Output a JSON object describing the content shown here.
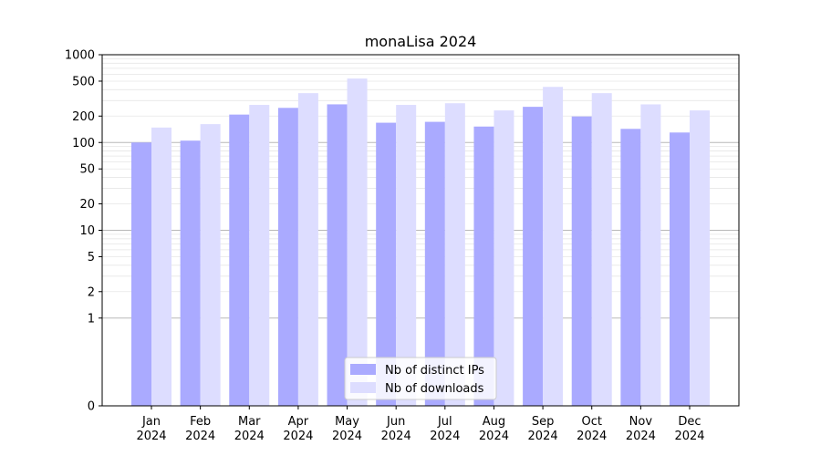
{
  "chart_data": {
    "type": "bar",
    "title": "monaLisa 2024",
    "xlabel": "",
    "ylabel": "",
    "yscale": "symlog",
    "ylim": [
      0,
      1000
    ],
    "yticks": [
      0,
      1,
      2,
      5,
      10,
      20,
      50,
      100,
      200,
      500,
      1000
    ],
    "categories": [
      {
        "month": "Jan",
        "year": "2024"
      },
      {
        "month": "Feb",
        "year": "2024"
      },
      {
        "month": "Mar",
        "year": "2024"
      },
      {
        "month": "Apr",
        "year": "2024"
      },
      {
        "month": "May",
        "year": "2024"
      },
      {
        "month": "Jun",
        "year": "2024"
      },
      {
        "month": "Jul",
        "year": "2024"
      },
      {
        "month": "Aug",
        "year": "2024"
      },
      {
        "month": "Sep",
        "year": "2024"
      },
      {
        "month": "Oct",
        "year": "2024"
      },
      {
        "month": "Nov",
        "year": "2024"
      },
      {
        "month": "Dec",
        "year": "2024"
      }
    ],
    "series": [
      {
        "name": "Nb of distinct IPs",
        "color": "#aaaaff",
        "values": [
          100,
          105,
          208,
          248,
          272,
          168,
          172,
          152,
          255,
          198,
          143,
          130
        ]
      },
      {
        "name": "Nb of downloads",
        "color": "#ddddff",
        "values": [
          148,
          162,
          268,
          365,
          535,
          268,
          280,
          232,
          430,
          365,
          272,
          232
        ]
      }
    ],
    "grid": true,
    "legend_position": "bottom-center"
  }
}
